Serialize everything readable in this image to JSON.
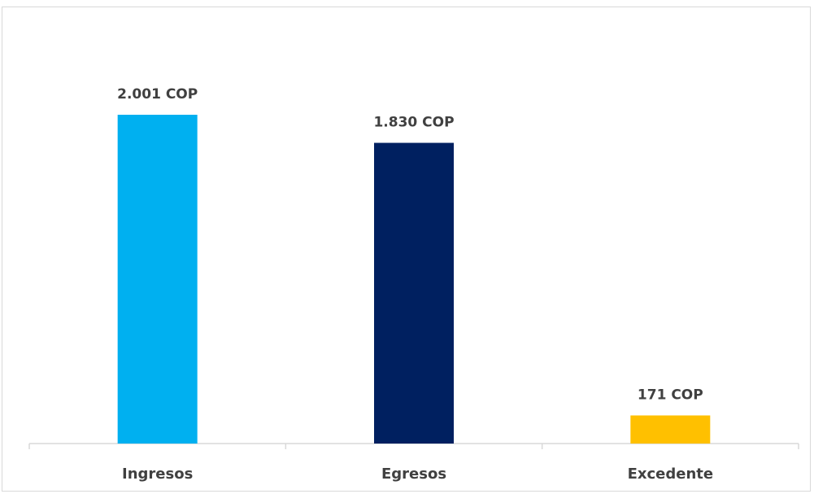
{
  "chart_data": {
    "type": "bar",
    "categories": [
      "Ingresos",
      "Egresos",
      "Excedente"
    ],
    "values": [
      2001,
      1830,
      171
    ],
    "data_labels": [
      "2.001 COP",
      "1.830 COP",
      "171 COP"
    ],
    "colors": [
      "#00B0F0",
      "#002060",
      "#FFC000"
    ],
    "title": "",
    "xlabel": "",
    "ylabel": "",
    "ylim": [
      0,
      2100
    ],
    "grid": false,
    "legend": "none"
  }
}
